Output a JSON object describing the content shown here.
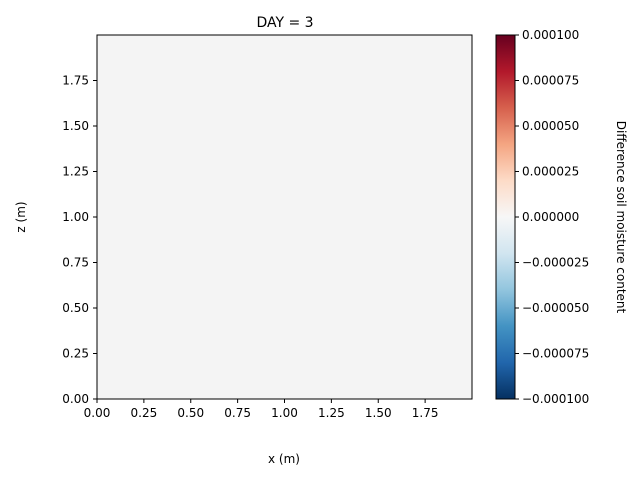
{
  "chart_data": {
    "type": "heatmap",
    "title": "DAY = 3",
    "xlabel": "x (m)",
    "ylabel": "z (m)",
    "xlim": [
      0,
      2.0
    ],
    "ylim": [
      0,
      2.0
    ],
    "xticks": [
      0.0,
      0.25,
      0.5,
      0.75,
      1.0,
      1.25,
      1.5,
      1.75
    ],
    "yticks": [
      0.0,
      0.25,
      0.5,
      0.75,
      1.0,
      1.25,
      1.5,
      1.75
    ],
    "x_tick_labels": [
      "0.00",
      "0.25",
      "0.50",
      "0.75",
      "1.00",
      "1.25",
      "1.50",
      "1.75"
    ],
    "y_tick_labels": [
      "0.00",
      "0.25",
      "0.50",
      "0.75",
      "1.00",
      "1.25",
      "1.50",
      "1.75"
    ],
    "field_value": 0.0,
    "field_color": "#f4f4f4",
    "colorbar": {
      "label": "Difference soil moisture content",
      "colormap": "RdBu_r",
      "vmin": -0.0001,
      "vmax": 0.0001,
      "ticks": [
        -0.0001,
        -7.5e-05,
        -5e-05,
        -2.5e-05,
        0.0,
        2.5e-05,
        5e-05,
        7.5e-05,
        0.0001
      ],
      "tick_labels": [
        "−0.000100",
        "−0.000075",
        "−0.000050",
        "−0.000025",
        "0.000000",
        "0.000025",
        "0.000050",
        "0.000075",
        "0.000100"
      ],
      "gradient_stops": [
        "#053061",
        "#2166ac",
        "#4393c3",
        "#92c5de",
        "#d1e5f0",
        "#f7f7f7",
        "#fddbc7",
        "#f4a582",
        "#d6604d",
        "#b2182b",
        "#67001f"
      ]
    }
  }
}
